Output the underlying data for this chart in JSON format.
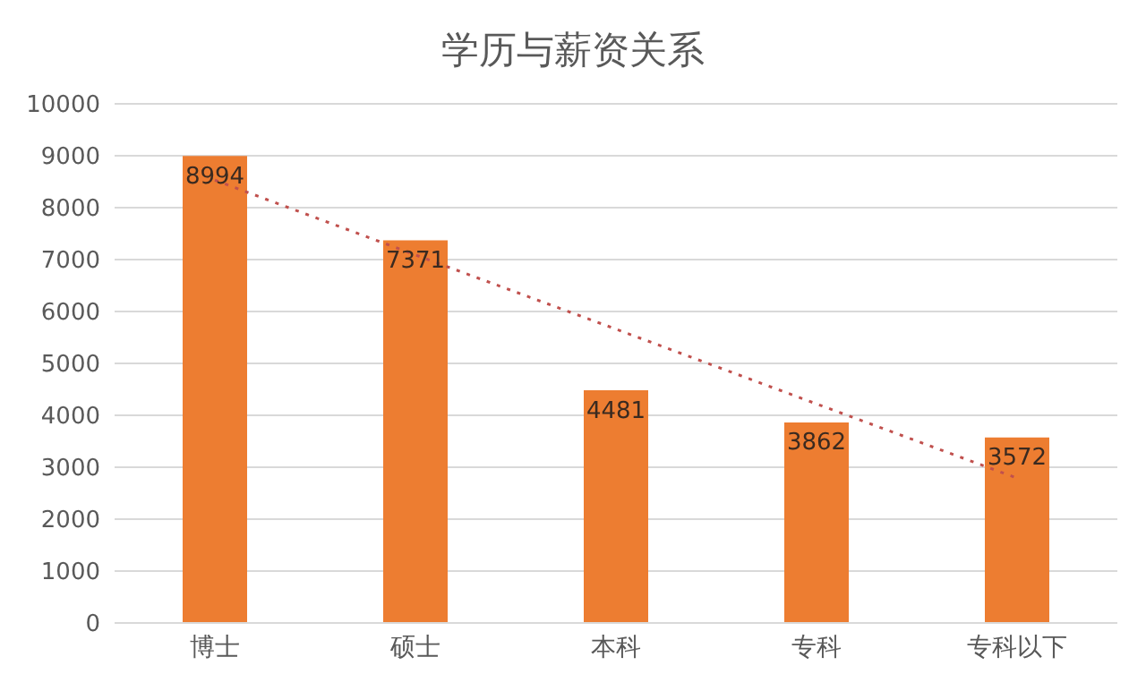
{
  "chart_data": {
    "type": "bar",
    "title": "学历与薪资关系",
    "categories": [
      "博士",
      "硕士",
      "本科",
      "专科",
      "专科以下"
    ],
    "series": [
      {
        "color": "#ed7d31",
        "values": [
          8994,
          7371,
          4481,
          3862,
          3572
        ],
        "value_labels": [
          "8994",
          "7371",
          "4481",
          "3862",
          "3572"
        ]
      },
      {
        "type": "line",
        "color": "#c0504d",
        "line_style": "dotted",
        "marker": "none",
        "x": [
          "博士",
          "硕士",
          "本科",
          "专科",
          "专科以下"
        ],
        "values": [
          8530,
          7090,
          5660,
          4220,
          2790
        ]
      }
    ],
    "ylim": [
      0,
      10000
    ],
    "yticks": [
      0,
      1000,
      2000,
      3000,
      4000,
      5000,
      6000,
      7000,
      8000,
      9000,
      10000
    ],
    "grid": "y",
    "legend": false
  }
}
